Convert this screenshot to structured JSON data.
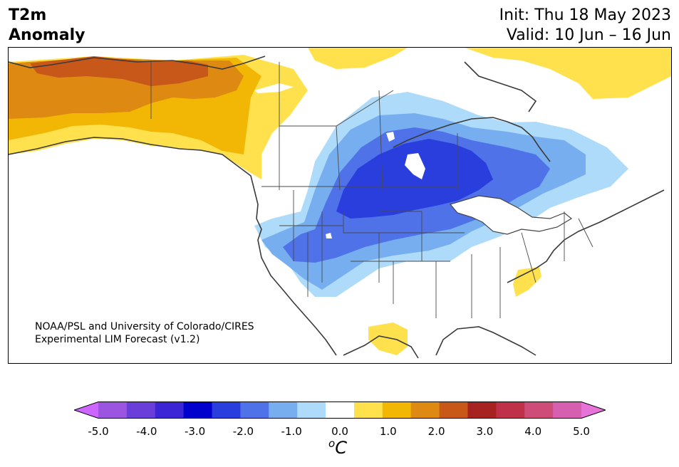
{
  "title": {
    "line1": "T2m",
    "line2": "Anomaly"
  },
  "init": "Init: Thu 18 May 2023",
  "valid": "Valid: 10 Jun – 16 Jun",
  "credit": {
    "line1": "NOAA/PSL and University of Colorado/CIRES",
    "line2": "Experimental LIM Forecast (v1.2)"
  },
  "colorbar": {
    "ticks": [
      "-5.0",
      "-4.0",
      "-3.0",
      "-2.0",
      "-1.0",
      "0.0",
      "1.0",
      "2.0",
      "3.0",
      "4.0",
      "5.0"
    ],
    "unit_sup": "o",
    "unit_main": "C",
    "colors": [
      "#cc66ff",
      "#9b55e0",
      "#6a3ed8",
      "#3b25d4",
      "#0000cc",
      "#2a3ede",
      "#4f72e8",
      "#77aef0",
      "#aedbfa",
      "#ffffff",
      "#ffe14d",
      "#f2b705",
      "#de8a12",
      "#c8571a",
      "#a62322",
      "#be3148",
      "#ce4d78",
      "#d65fb0",
      "#e674d8"
    ]
  },
  "anomaly_regions": [
    {
      "level": "+0.5 to +1.0",
      "color": "#ffe14d",
      "area": "western Canada / Yukon"
    },
    {
      "level": "+1.0 to +1.5",
      "color": "#f2b705",
      "area": "Alaska"
    },
    {
      "level": "+1.5 to +2.0",
      "color": "#de8a12",
      "area": "northern Alaska"
    },
    {
      "level": "+2.0 to +2.5",
      "color": "#c8571a",
      "area": "North Slope Alaska"
    },
    {
      "level": "-0.5 to -1.0",
      "color": "#aedbfa",
      "area": "central North America"
    },
    {
      "level": "-1.0 to -1.5",
      "color": "#77aef0",
      "area": "Canadian Prairies / Plains"
    },
    {
      "level": "-1.5 to -2.0",
      "color": "#4f72e8",
      "area": "Manitoba / Dakotas"
    },
    {
      "level": "-2.0 to -2.5",
      "color": "#2a3ede",
      "area": "Manitoba / Northern Plains"
    }
  ]
}
